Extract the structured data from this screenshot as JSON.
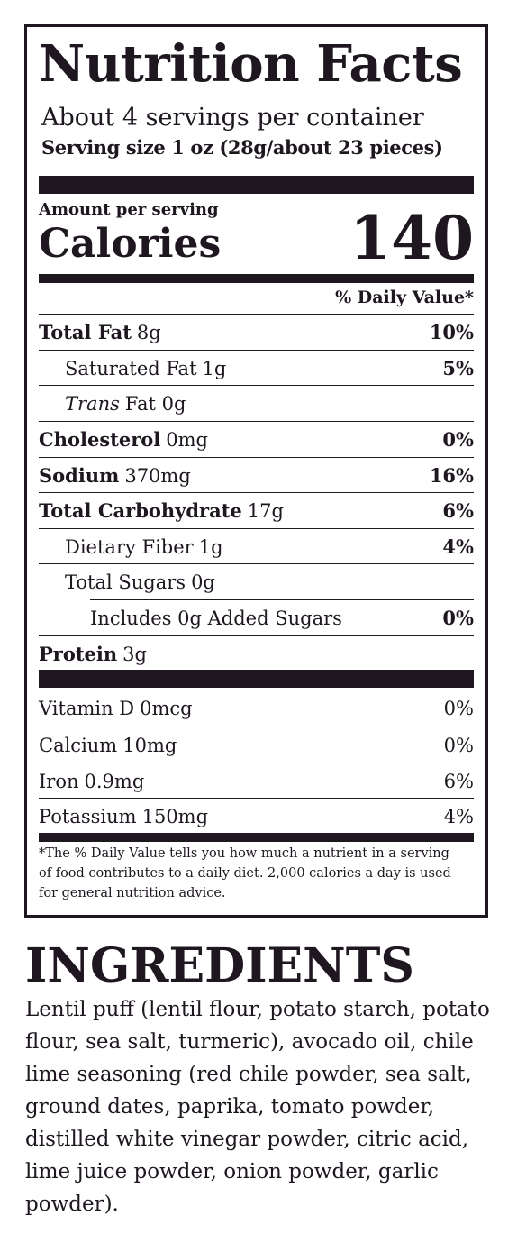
{
  "label": {
    "title": "Nutrition Facts",
    "servings_per_container": "About 4 servings per container",
    "serving_size": "Serving size 1 oz (28g/about 23 pieces)",
    "amount_per_serving": "Amount per serving",
    "calories_label": "Calories",
    "calories_value": "140",
    "daily_value_header": "% Daily Value*"
  },
  "nutrients": [
    {
      "name": "Total Fat",
      "amount": "8g",
      "dv": "10%"
    },
    {
      "name": "Saturated Fat",
      "amount": "1g",
      "dv": "5%"
    },
    {
      "name": "Trans",
      "amount": "Fat 0g",
      "dv": ""
    },
    {
      "name": "Cholesterol",
      "amount": "0mg",
      "dv": "0%"
    },
    {
      "name": "Sodium",
      "amount": "370mg",
      "dv": "16%"
    },
    {
      "name": "Total Carbohydrate",
      "amount": "17g",
      "dv": "6%"
    },
    {
      "name": "Dietary Fiber",
      "amount": "1g",
      "dv": "4%"
    },
    {
      "name": "Total Sugars",
      "amount": "0g",
      "dv": ""
    },
    {
      "name": "Includes 0g Added Sugars",
      "amount": "",
      "dv": "0%"
    },
    {
      "name": "Protein",
      "amount": "3g",
      "dv": ""
    }
  ],
  "vitamins": [
    {
      "name": "Vitamin D",
      "amount": "0mcg",
      "dv": "0%"
    },
    {
      "name": "Calcium",
      "amount": "10mg",
      "dv": "0%"
    },
    {
      "name": "Iron",
      "amount": "0.9mg",
      "dv": "6%"
    },
    {
      "name": "Potassium",
      "amount": "150mg",
      "dv": "4%"
    }
  ],
  "footnote": "*The % Daily Value tells you how much a nutrient in a serving of food contributes to a daily diet. 2,000 calories a day is used for general nutrition advice.",
  "ingredients": {
    "title": "INGREDIENTS",
    "text": "Lentil puff (lentil flour, potato starch, potato flour, sea salt, turmeric), avocado oil, chile lime seasoning (red chile powder, sea salt, ground dates, paprika, tomato powder, distilled white vinegar powder, citric acid, lime juice powder, onion powder, garlic powder)."
  },
  "colors": {
    "ink": "#1e1720",
    "background": "#ffffff"
  }
}
